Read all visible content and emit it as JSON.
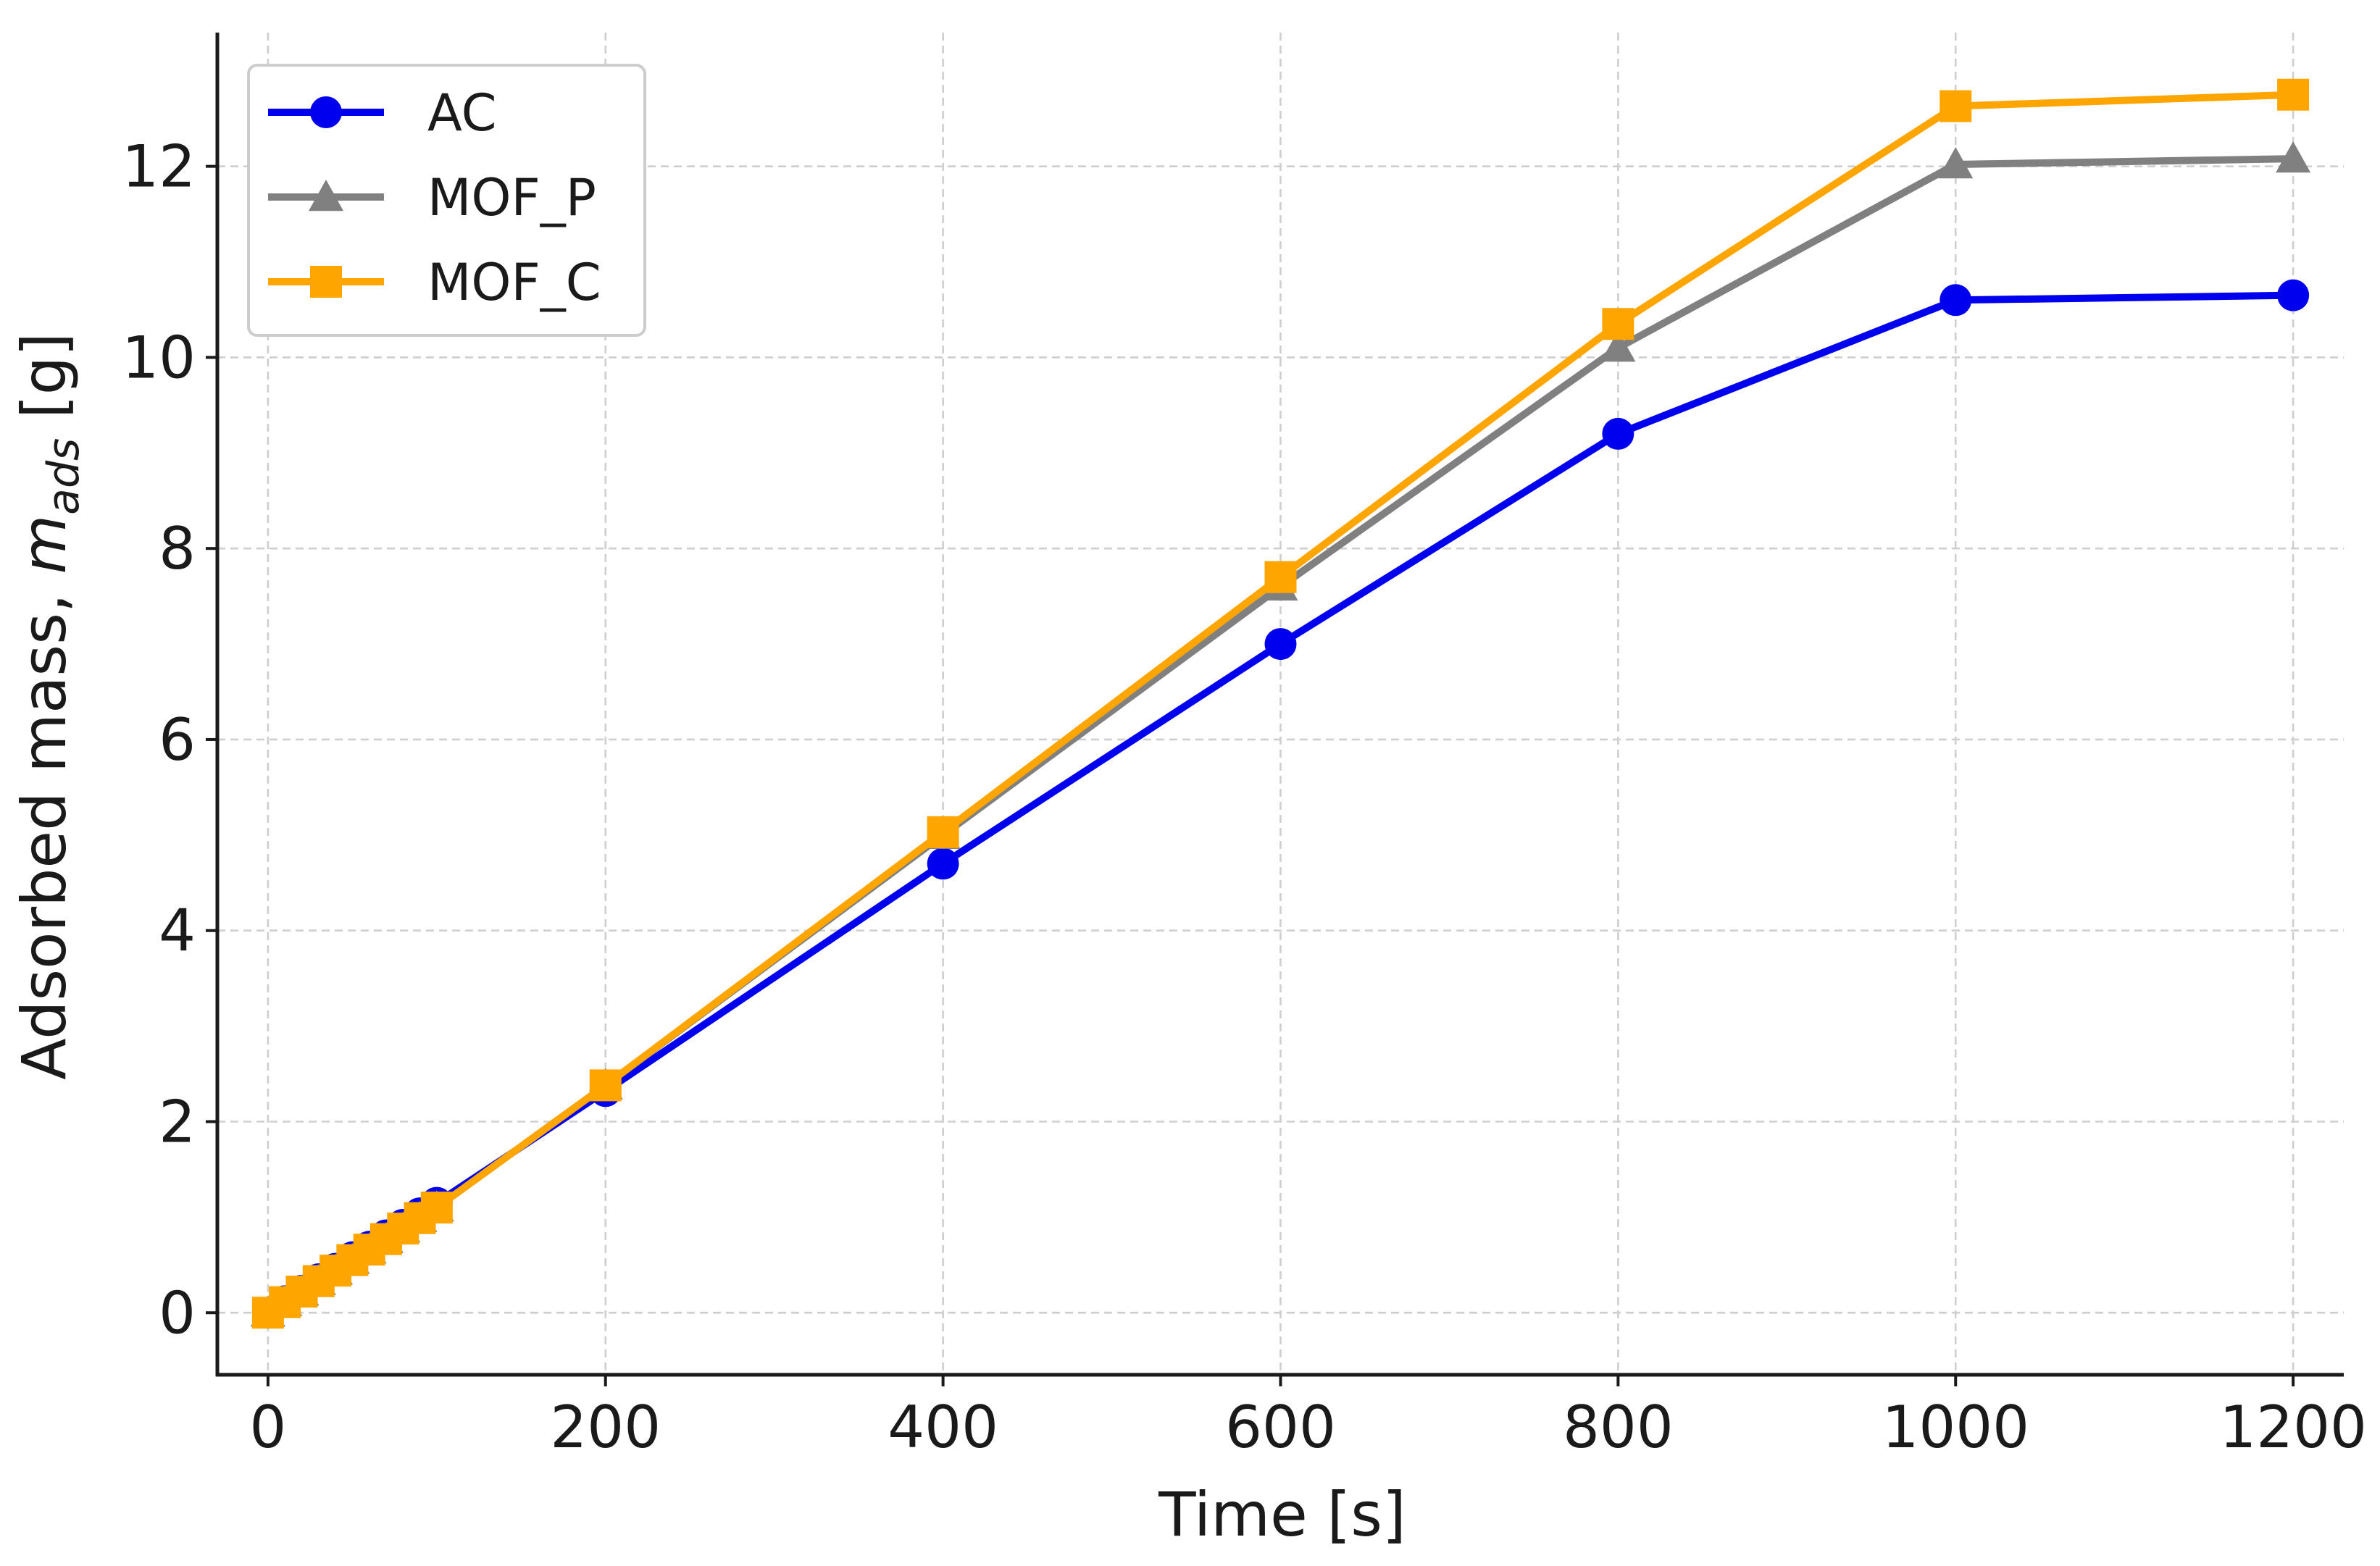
{
  "chart_data": {
    "type": "line",
    "title": "",
    "xlabel": "Time [s]",
    "ylabel_prefix": "Adsorbed mass, ",
    "ylabel_symbol": "m",
    "ylabel_subscript": "ads",
    "ylabel_unit": " [g]",
    "xlim": [
      -30,
      1230
    ],
    "ylim": [
      -0.65,
      13.4
    ],
    "xticks": [
      0,
      200,
      400,
      600,
      800,
      1000,
      1200
    ],
    "xtick_labels": [
      "0",
      "200",
      "400",
      "600",
      "800",
      "1000",
      "1200"
    ],
    "yticks": [
      0,
      2,
      4,
      6,
      8,
      10,
      12
    ],
    "ytick_labels": [
      "0",
      "2",
      "4",
      "6",
      "8",
      "10",
      "12"
    ],
    "grid": true,
    "legend_position": "top-left",
    "x": [
      0,
      10,
      20,
      30,
      40,
      50,
      60,
      70,
      80,
      90,
      100,
      200,
      400,
      600,
      800,
      1000,
      1200
    ],
    "series": [
      {
        "name": "AC",
        "color": "#0000ee",
        "marker": "circle",
        "values": [
          0,
          0.12,
          0.23,
          0.35,
          0.46,
          0.58,
          0.69,
          0.81,
          0.92,
          1.04,
          1.15,
          2.32,
          4.7,
          7.0,
          9.2,
          10.6,
          10.65
        ]
      },
      {
        "name": "MOF_P",
        "color": "#808080",
        "marker": "triangle",
        "values": [
          0,
          0.11,
          0.22,
          0.33,
          0.44,
          0.55,
          0.66,
          0.77,
          0.88,
          0.99,
          1.1,
          2.38,
          5.0,
          7.6,
          10.1,
          12.02,
          12.08
        ]
      },
      {
        "name": "MOF_C",
        "color": "#ffa500",
        "marker": "square",
        "values": [
          0,
          0.11,
          0.22,
          0.33,
          0.44,
          0.55,
          0.66,
          0.77,
          0.88,
          0.99,
          1.1,
          2.38,
          5.03,
          7.7,
          10.35,
          12.63,
          12.75
        ]
      }
    ]
  }
}
